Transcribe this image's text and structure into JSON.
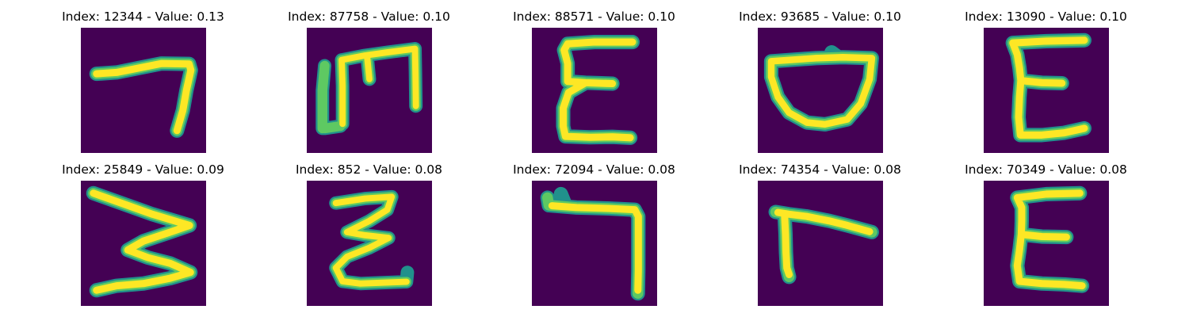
{
  "panels": [
    {
      "title": "Index: 12344 - Value: 0.13"
    },
    {
      "title": "Index: 87758 - Value: 0.10"
    },
    {
      "title": "Index: 88571 - Value: 0.10"
    },
    {
      "title": "Index: 93685 - Value: 0.10"
    },
    {
      "title": "Index: 13090 - Value: 0.10"
    },
    {
      "title": "Index: 25849 - Value: 0.09"
    },
    {
      "title": "Index: 852 - Value: 0.08"
    },
    {
      "title": "Index: 72094 - Value: 0.08"
    },
    {
      "title": "Index: 74354 - Value: 0.08"
    },
    {
      "title": "Index: 70349 - Value: 0.08"
    }
  ],
  "colors": {
    "background": "#440154",
    "stroke_outer": "#21918c",
    "stroke_mid": "#5ec962",
    "stroke_core": "#fde725"
  },
  "glyph_icons": [
    "handwritten-seven-icon",
    "handwritten-m-icon",
    "handwritten-e-icon",
    "handwritten-bowl-icon",
    "handwritten-e-icon",
    "handwritten-three-icon",
    "handwritten-z-icon",
    "handwritten-seven-icon",
    "handwritten-r-icon",
    "handwritten-e-icon"
  ]
}
